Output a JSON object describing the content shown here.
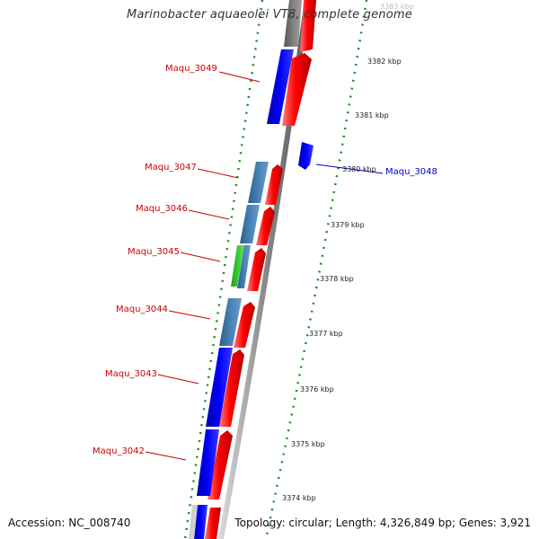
{
  "title": "Marinobacter aquaeolei VT8, complete genome",
  "footer": {
    "accession": "Accession: NC_008740",
    "summary": "Topology: circular; Length: 4,326,849 bp; Genes: 3,921"
  },
  "colors": {
    "background": "#ffffff",
    "forward_gene": "#ff0000",
    "reverse_gene": "#0000ff",
    "reverse_gene_light": "#4682b4",
    "green_gene": "#33cc33",
    "grey_gene": "#808080",
    "label_red": "#cc0000",
    "label_blue": "#0000cc",
    "tick_green": "#228b22",
    "backbone": "#888888"
  },
  "gene_labels": [
    {
      "id": "Maqu_3049",
      "text": "Maqu_3049",
      "color": "red"
    },
    {
      "id": "Maqu_3048",
      "text": "Maqu_3048",
      "color": "blue"
    },
    {
      "id": "Maqu_3047",
      "text": "Maqu_3047",
      "color": "red"
    },
    {
      "id": "Maqu_3046",
      "text": "Maqu_3046",
      "color": "red"
    },
    {
      "id": "Maqu_3045",
      "text": "Maqu_3045",
      "color": "red"
    },
    {
      "id": "Maqu_3044",
      "text": "Maqu_3044",
      "color": "red"
    },
    {
      "id": "Maqu_3043",
      "text": "Maqu_3043",
      "color": "red"
    },
    {
      "id": "Maqu_3042",
      "text": "Maqu_3042",
      "color": "red"
    }
  ],
  "kbp_labels": [
    {
      "id": "kbp3383",
      "text": "3383 kbp"
    },
    {
      "id": "kbp3382",
      "text": "3382 kbp"
    },
    {
      "id": "kbp3381",
      "text": "3381 kbp"
    },
    {
      "id": "kbp3380",
      "text": "3380 kbp"
    },
    {
      "id": "kbp3379",
      "text": "3379 kbp"
    },
    {
      "id": "kbp3378",
      "text": "3378 kbp"
    },
    {
      "id": "kbp3377",
      "text": "3377 kbp"
    },
    {
      "id": "kbp3376",
      "text": "3376 kbp"
    },
    {
      "id": "kbp3375",
      "text": "3375 kbp"
    },
    {
      "id": "kbp3374",
      "text": "3374 kbp"
    }
  ]
}
